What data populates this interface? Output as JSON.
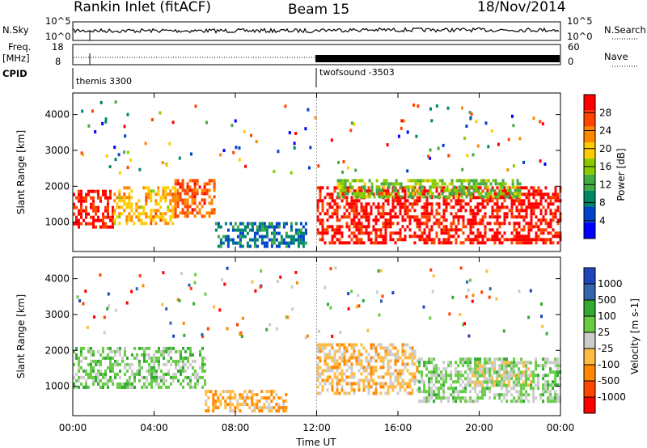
{
  "header": {
    "title_left": "Rankin Inlet (fitACF)",
    "title_center": "Beam 15",
    "title_right": "18/Nov/2014"
  },
  "top_panels": {
    "nsky_label": "N.Sky",
    "nsearch_label": "N.Search",
    "nsky_tick_top": "10^5",
    "nsky_tick_bottom": "10^0",
    "freq_label": "Freq.",
    "freq_unit": "[MHz]",
    "freq_tick_top": "18",
    "freq_tick_bottom": "8",
    "nave_label": "Nave",
    "nave_tick_top": "60",
    "nave_tick_bottom": "0",
    "cpid_label": "CPID",
    "cpid_left": "themis 3300",
    "cpid_right": "twofsound -3503"
  },
  "power_panel": {
    "ylabel": "Slant Range [km]",
    "colorbar_label": "Power [dB]",
    "colorbar_ticks": [
      "28",
      "24",
      "20",
      "16",
      "12",
      "8",
      "4"
    ],
    "colors": [
      "#ff0000",
      "#ff4400",
      "#ff8800",
      "#ffcc00",
      "#88cc00",
      "#44aa44",
      "#008866",
      "#0044cc",
      "#0000ff"
    ]
  },
  "velocity_panel": {
    "ylabel": "Slant Range [km]",
    "colorbar_label": "Velocity [m s-1]",
    "colorbar_ticks": [
      "1000",
      "500",
      "100",
      "25",
      "-25",
      "-100",
      "-500",
      "-1000"
    ],
    "colors": [
      "#2244bb",
      "#3366aa",
      "#33aa33",
      "#66cc44",
      "#cccccc",
      "#ffbb44",
      "#ff8800",
      "#ff4400",
      "#ff0000"
    ]
  },
  "x_axis": {
    "label": "Time UT",
    "ticks": [
      "00:00",
      "04:00",
      "08:00",
      "12:00",
      "16:00",
      "20:00",
      "00:00"
    ]
  },
  "chart_data": {
    "type": "heatmap",
    "x": [
      0,
      4,
      8,
      12,
      16,
      20,
      24
    ],
    "xlabel": "Time UT",
    "ylabel": "Slant Range [km]",
    "ylim": [
      180,
      4600
    ],
    "xlim": [
      0,
      24
    ],
    "y_ticks": [
      1000,
      2000,
      3000,
      4000
    ],
    "series": [
      {
        "name": "Power [dB]",
        "clim": [
          0,
          30
        ],
        "regions": [
          {
            "t0": 0.0,
            "t1": 2.0,
            "r0": 900,
            "r1": 1900,
            "value": 28
          },
          {
            "t0": 2.0,
            "t1": 5.0,
            "r0": 1000,
            "r1": 2000,
            "value": 20
          },
          {
            "t0": 5.0,
            "t1": 7.0,
            "r0": 1200,
            "r1": 2200,
            "value": 24
          },
          {
            "t0": 7.0,
            "t1": 11.5,
            "r0": 300,
            "r1": 1000,
            "value": 8
          },
          {
            "t0": 12.0,
            "t1": 24.0,
            "r0": 400,
            "r1": 2000,
            "value": 28
          },
          {
            "t0": 13.0,
            "t1": 22.0,
            "r0": 1700,
            "r1": 2200,
            "value": 14
          }
        ]
      },
      {
        "name": "Velocity [m s-1]",
        "clim": [
          -1000,
          1000
        ],
        "regions": [
          {
            "t0": 0.0,
            "t1": 6.5,
            "r0": 1000,
            "r1": 2100,
            "value": 200
          },
          {
            "t0": 6.5,
            "t1": 10.5,
            "r0": 300,
            "r1": 900,
            "value": -300
          },
          {
            "t0": 12.0,
            "t1": 17.0,
            "r0": 800,
            "r1": 2200,
            "value": -200
          },
          {
            "t0": 17.0,
            "t1": 24.0,
            "r0": 600,
            "r1": 1800,
            "value": 150
          },
          {
            "t0": 19.5,
            "t1": 22.5,
            "r0": 1000,
            "r1": 1700,
            "value": 0
          }
        ]
      }
    ]
  }
}
